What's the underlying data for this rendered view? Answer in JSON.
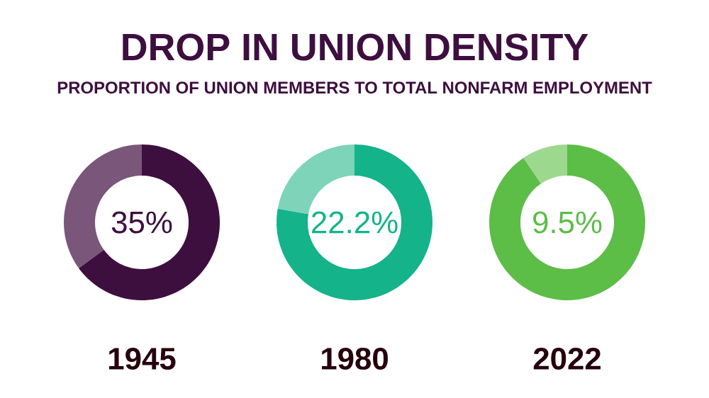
{
  "chart_data": [
    {
      "type": "donut",
      "categories": [
        null,
        null
      ],
      "values": [
        35,
        65
      ],
      "colors": [
        "#7a567b",
        "#3d0f3f"
      ],
      "annotations": [
        "35%"
      ],
      "xlabel": "1945"
    },
    {
      "type": "donut",
      "title": "DROP IN UNION DENSITY",
      "subtitle": "PROPORTION OF UNION MEMBERS TO TOTAL NONFARM EMPLOYMENT",
      "categories": [
        null,
        null
      ],
      "values": [
        22.2,
        77.8
      ],
      "colors": [
        "#7dd4b9",
        "#14b38a"
      ],
      "annotations": [
        "22.2%"
      ],
      "xlabel": "1980"
    },
    {
      "type": "donut",
      "categories": [
        null,
        null
      ],
      "values": [
        9.5,
        90.5
      ],
      "colors": [
        "#9dd88f",
        "#5cbd47"
      ],
      "annotations": [
        "9.5%"
      ],
      "xlabel": "2022"
    }
  ]
}
